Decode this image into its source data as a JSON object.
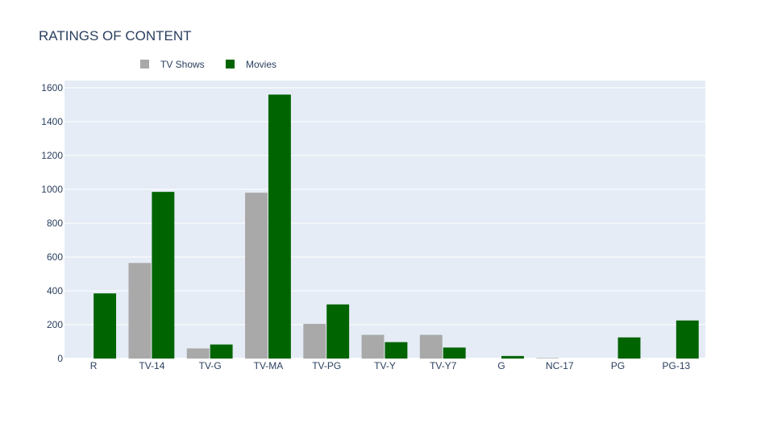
{
  "chart_data": {
    "type": "bar",
    "title": "RATINGS OF CONTENT",
    "xlabel": "",
    "ylabel": "",
    "categories": [
      "R",
      "TV-14",
      "TV-G",
      "TV-MA",
      "TV-PG",
      "TV-Y",
      "TV-Y7",
      "G",
      "NC-17",
      "PG",
      "PG-13"
    ],
    "series": [
      {
        "name": "TV Shows",
        "color": "#a9a9a9",
        "values": [
          0,
          565,
          60,
          980,
          205,
          140,
          140,
          0,
          3,
          0,
          0
        ]
      },
      {
        "name": "Movies",
        "color": "#006400",
        "values": [
          385,
          985,
          83,
          1560,
          320,
          97,
          65,
          15,
          0,
          125,
          225
        ]
      }
    ],
    "ylim": [
      0,
      1600
    ],
    "yticks": [
      0,
      200,
      400,
      600,
      800,
      1000,
      1200,
      1400,
      1600
    ],
    "grid": true,
    "legend_position": "top-left, horizontal",
    "plot_background": "#e5ecf6"
  }
}
